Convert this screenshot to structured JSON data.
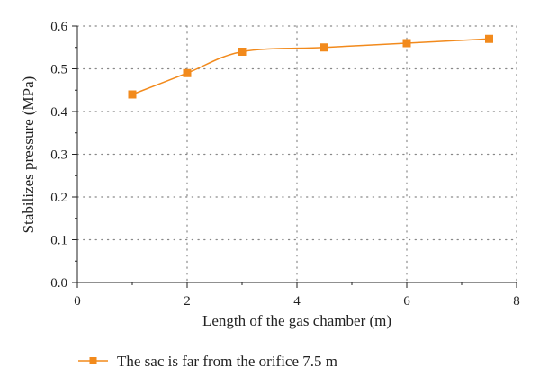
{
  "chart_data": {
    "type": "line",
    "title": "",
    "xlabel": "Length of the gas chamber (m)",
    "ylabel": "Stabilizes pressure (MPa)",
    "xlim": [
      0,
      8
    ],
    "ylim": [
      0,
      0.6
    ],
    "xticks": [
      0,
      2,
      4,
      6,
      8
    ],
    "yticks": [
      0.0,
      0.1,
      0.2,
      0.3,
      0.4,
      0.5,
      0.6
    ],
    "xtick_labels": [
      "0",
      "2",
      "4",
      "6",
      "8"
    ],
    "ytick_labels": [
      "0.0",
      "0.1",
      "0.2",
      "0.3",
      "0.4",
      "0.5",
      "0.6"
    ],
    "grid": true,
    "grid_style": "dotted",
    "legend_position": "bottom-left",
    "series": [
      {
        "name": "The sac is far from the orifice 7.5 m",
        "color": "#f28a1c",
        "marker": "square",
        "smooth": true,
        "x": [
          1,
          2,
          3,
          4.5,
          6,
          7.5
        ],
        "y": [
          0.44,
          0.49,
          0.54,
          0.55,
          0.56,
          0.57
        ]
      }
    ]
  }
}
